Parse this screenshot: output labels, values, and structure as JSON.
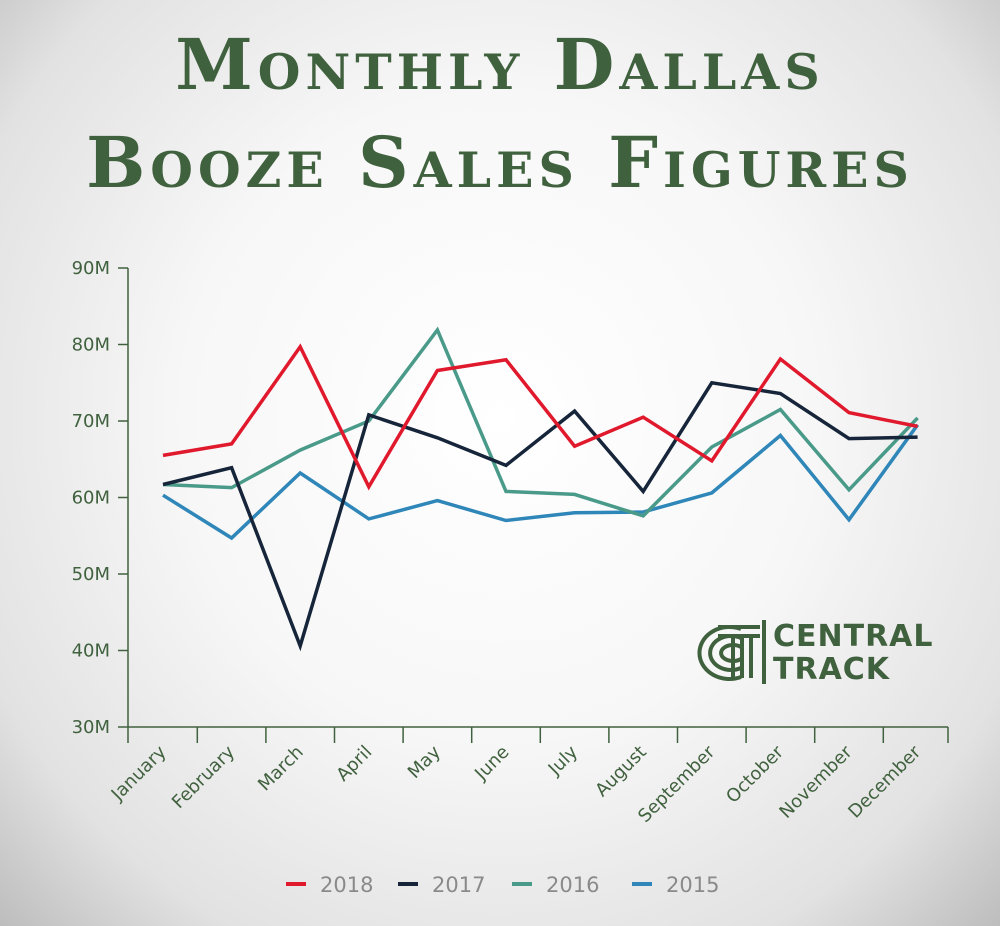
{
  "title_lines": [
    "Monthly Dallas",
    "Booze Sales Figures"
  ],
  "brand": {
    "line1": "CENTRAL",
    "line2": "TRACK"
  },
  "chart_data": {
    "type": "line",
    "title": "Monthly Dallas Booze Sales Figures",
    "categories": [
      "January",
      "February",
      "March",
      "April",
      "May",
      "June",
      "July",
      "August",
      "September",
      "October",
      "November",
      "December"
    ],
    "yticks": [
      "30M",
      "40M",
      "50M",
      "60M",
      "70M",
      "80M",
      "90M"
    ],
    "ylim": [
      30,
      90
    ],
    "y_unit": "M",
    "legend_position": "bottom",
    "grid": false,
    "series": [
      {
        "name": "2018",
        "color": "#e0192d",
        "values": [
          65.5,
          67.0,
          79.7,
          61.4,
          76.6,
          78.0,
          66.7,
          70.5,
          64.8,
          78.1,
          71.1,
          69.3
        ]
      },
      {
        "name": "2017",
        "color": "#16253a",
        "values": [
          61.7,
          63.9,
          40.6,
          70.8,
          67.8,
          64.2,
          71.3,
          60.8,
          75.0,
          73.6,
          67.7,
          67.9
        ]
      },
      {
        "name": "2016",
        "color": "#4a9a8a",
        "values": [
          61.7,
          61.3,
          66.2,
          70.0,
          81.9,
          60.8,
          60.4,
          57.6,
          66.6,
          71.5,
          61.0,
          70.4
        ]
      },
      {
        "name": "2015",
        "color": "#2f86b8",
        "values": [
          60.3,
          54.7,
          63.2,
          57.2,
          59.6,
          57.0,
          58.0,
          58.1,
          60.6,
          68.1,
          57.1,
          69.5
        ]
      }
    ]
  }
}
